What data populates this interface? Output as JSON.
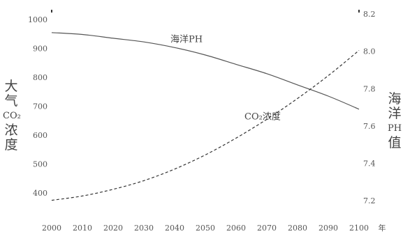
{
  "chart_data": {
    "type": "line",
    "x": [
      2000,
      2010,
      2020,
      2030,
      2040,
      2050,
      2060,
      2070,
      2080,
      2090,
      2100
    ],
    "x_tick_labels": [
      "2000",
      "2010",
      "2020",
      "2030",
      "2040",
      "2050",
      "2060",
      "2070",
      "2080",
      "2090",
      "2100"
    ],
    "xunit": "年",
    "left_axis": {
      "label_chars": [
        "大",
        "气",
        "CO₂",
        "浓",
        "度"
      ],
      "ticks": [
        "1000",
        "900",
        "800",
        "700",
        "600",
        "500",
        "400"
      ],
      "tick_values": [
        1000,
        900,
        800,
        700,
        600,
        500,
        400
      ],
      "ylim": [
        350,
        1000
      ]
    },
    "right_axis": {
      "label_chars": [
        "海",
        "洋",
        "PH",
        "值"
      ],
      "ticks": [
        "8.2",
        "8.0",
        "7.8",
        "7.6",
        "7.4",
        "7.2"
      ],
      "tick_values": [
        8.2,
        8.0,
        7.8,
        7.6,
        7.4,
        7.2
      ],
      "ylim": [
        7.1,
        8.2
      ]
    },
    "series": [
      {
        "name": "海洋PH",
        "axis": "right",
        "style": "solid",
        "color": "#555555",
        "values": [
          8.1,
          8.09,
          8.07,
          8.05,
          8.02,
          7.98,
          7.93,
          7.88,
          7.82,
          7.76,
          7.69
        ]
      },
      {
        "name": "CO₂浓度",
        "axis": "left",
        "style": "dashed",
        "color": "#333333",
        "values": [
          375,
          390,
          413,
          443,
          483,
          532,
          590,
          655,
          727,
          806,
          893
        ]
      }
    ],
    "grid": false,
    "legend": "none"
  }
}
